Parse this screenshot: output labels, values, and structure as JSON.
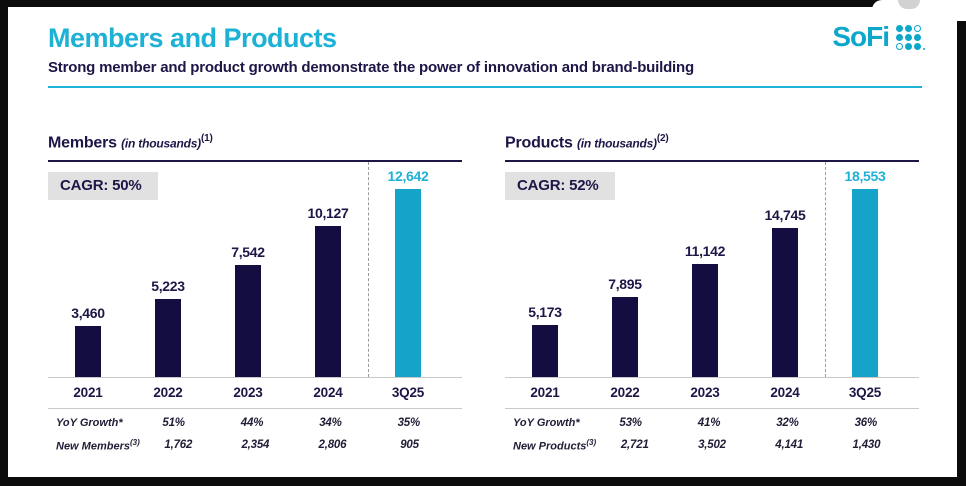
{
  "header": {
    "title": "Members and Products",
    "subtitle": "Strong member and product growth demonstrate the power of innovation and brand-building",
    "logo_text": "SoFi"
  },
  "colors": {
    "accent_cyan": "#1db1d5",
    "logo_cyan": "#0da7cb",
    "bar_cyan": "#16a3c9",
    "navy_text": "#1d1646",
    "bar_navy": "#140d41",
    "cagr_badge_bg": "#e1e1e1",
    "grid_gray": "#c9c9c9"
  },
  "chart_data": [
    {
      "type": "bar",
      "title": "Members",
      "title_note": "(in thousands)",
      "title_sup": "(1)",
      "cagr_label": "CAGR: 50%",
      "categories": [
        "2021",
        "2022",
        "2023",
        "2024",
        "3Q25"
      ],
      "values": [
        3460,
        5223,
        7542,
        10127,
        12642
      ],
      "value_labels": [
        "3,460",
        "5,223",
        "7,542",
        "10,127",
        "12,642"
      ],
      "highlight_index": 4,
      "ylim": [
        0,
        12642
      ],
      "legend": "none",
      "grid": "off",
      "table_rows": [
        {
          "label": "YoY Growth*",
          "label_sup": "",
          "values": [
            "51%",
            "44%",
            "34%",
            "35%"
          ]
        },
        {
          "label": "New Members",
          "label_sup": "(3)",
          "values": [
            "1,762",
            "2,354",
            "2,806",
            "905"
          ]
        }
      ]
    },
    {
      "type": "bar",
      "title": "Products",
      "title_note": "(in thousands)",
      "title_sup": "(2)",
      "cagr_label": "CAGR: 52%",
      "categories": [
        "2021",
        "2022",
        "2023",
        "2024",
        "3Q25"
      ],
      "values": [
        5173,
        7895,
        11142,
        14745,
        18553
      ],
      "value_labels": [
        "5,173",
        "7,895",
        "11,142",
        "14,745",
        "18,553"
      ],
      "highlight_index": 4,
      "ylim": [
        0,
        18553
      ],
      "legend": "none",
      "grid": "off",
      "table_rows": [
        {
          "label": "YoY Growth*",
          "label_sup": "",
          "values": [
            "53%",
            "41%",
            "32%",
            "36%"
          ]
        },
        {
          "label": "New Products",
          "label_sup": "(3)",
          "values": [
            "2,721",
            "3,502",
            "4,141",
            "1,430"
          ]
        }
      ]
    }
  ]
}
